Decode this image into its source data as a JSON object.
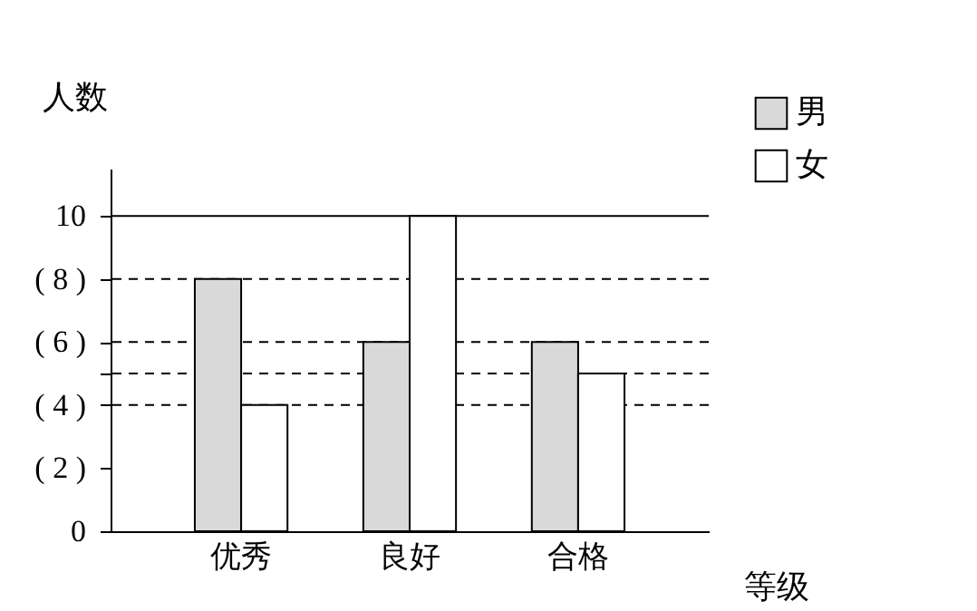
{
  "chart_data": {
    "type": "bar",
    "xlabel": "等级",
    "ylabel": "人数",
    "categories": [
      "优秀",
      "良好",
      "合格"
    ],
    "series": [
      {
        "name": "男",
        "color": "#d9d9d9",
        "values": [
          8,
          6,
          6
        ]
      },
      {
        "name": "女",
        "color": "#ffffff",
        "values": [
          4,
          10,
          5
        ]
      }
    ],
    "ylim": [
      0,
      11.5
    ],
    "yticks": [
      0,
      {
        "value": 2,
        "label": "(  2  )"
      },
      {
        "value": 4,
        "label": "(  4  )"
      },
      {
        "value": 5,
        "label": null
      },
      {
        "value": 6,
        "label": "(  6  )"
      },
      {
        "value": 8,
        "label": "(  8  )"
      },
      10
    ],
    "ref_lines": [
      {
        "axis": "y",
        "value": 10,
        "line_style": "solid"
      },
      {
        "axis": "y",
        "value": 8,
        "line_style": "dashed"
      },
      {
        "axis": "y",
        "value": 6,
        "line_style": "dashed"
      },
      {
        "axis": "y",
        "value": 5,
        "line_style": "dashed"
      },
      {
        "axis": "y",
        "value": 4,
        "line_style": "dashed"
      }
    ],
    "legend": "top right",
    "grid": false
  }
}
